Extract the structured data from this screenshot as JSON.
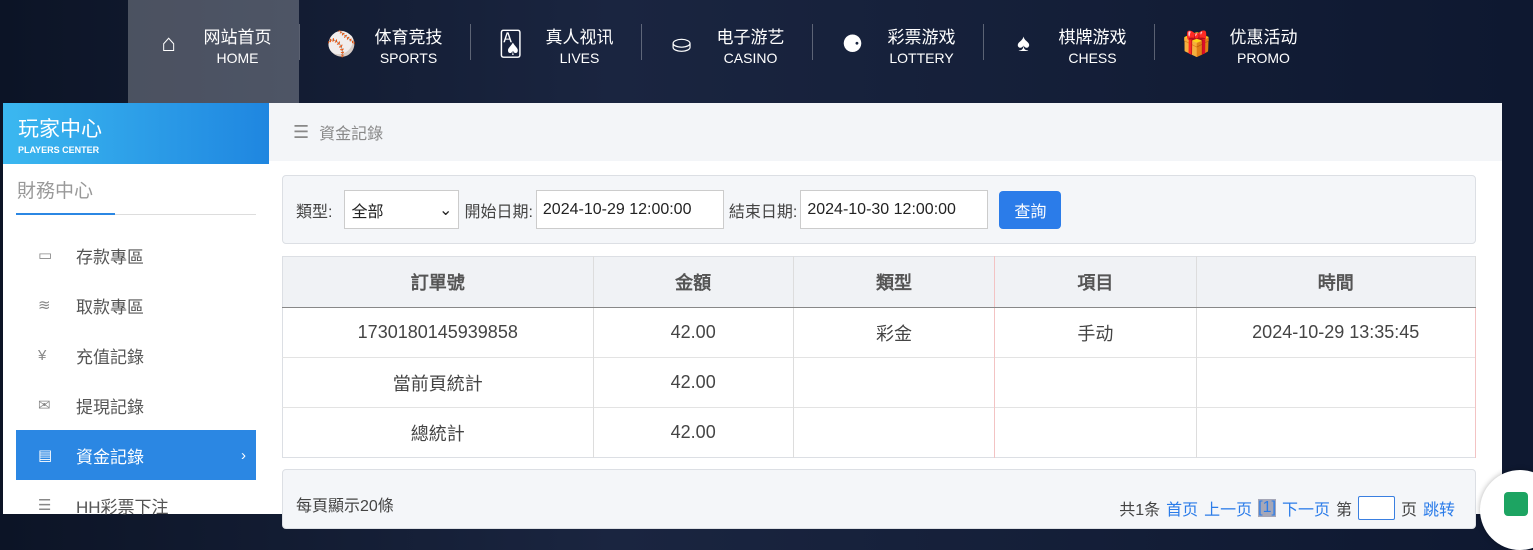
{
  "nav": [
    {
      "zh": "网站首页",
      "en": "HOME",
      "icon": "home-icon",
      "glyph": "⌂"
    },
    {
      "zh": "体育竞技",
      "en": "SPORTS",
      "icon": "ball-icon",
      "glyph": "⚾"
    },
    {
      "zh": "真人视讯",
      "en": "LIVES",
      "icon": "cards-icon",
      "glyph": "🂡"
    },
    {
      "zh": "电子游艺",
      "en": "CASINO",
      "icon": "roulette-icon",
      "glyph": "⛀"
    },
    {
      "zh": "彩票游戏",
      "en": "LOTTERY",
      "icon": "lottery-balls-icon",
      "glyph": "⚈"
    },
    {
      "zh": "棋牌游戏",
      "en": "CHESS",
      "icon": "spade-icon",
      "glyph": "♠"
    },
    {
      "zh": "优惠活动",
      "en": "PROMO",
      "icon": "gift-icon",
      "glyph": "🎁"
    }
  ],
  "sidebar": {
    "title": "玩家中心",
    "subtitle": "PLAYERS CENTER",
    "section": "財務中心",
    "items": [
      {
        "label": "存款專區",
        "glyph": "▭"
      },
      {
        "label": "取款專區",
        "glyph": "≋"
      },
      {
        "label": "充值記錄",
        "glyph": "¥"
      },
      {
        "label": "提現記錄",
        "glyph": "✉"
      },
      {
        "label": "資金記錄",
        "glyph": "▤",
        "chev": "›"
      },
      {
        "label": "HH彩票下注",
        "glyph": "☰"
      }
    ]
  },
  "breadcrumb": {
    "icon": "☰",
    "label": "資金記錄"
  },
  "filter": {
    "type_label": "類型:",
    "type_value": "全部",
    "start_label": "開始日期:",
    "start_value": "2024-10-29 12:00:00",
    "end_label": "結束日期:",
    "end_value": "2024-10-30 12:00:00",
    "query": "查詢"
  },
  "table": {
    "headers": [
      "訂單號",
      "金額",
      "類型",
      "項目",
      "時間"
    ],
    "rows": [
      [
        "1730180145939858",
        "42.00",
        "彩金",
        "手动",
        "2024-10-29 13:35:45"
      ],
      [
        "當前頁統計",
        "42.00",
        "",
        "",
        ""
      ],
      [
        "總統計",
        "42.00",
        "",
        "",
        ""
      ]
    ]
  },
  "footer": {
    "per_page": "每頁顯示20條",
    "total": "共1条",
    "first": "首页",
    "prev": "上一页",
    "current": "[1]",
    "next": "下一页",
    "page_prefix": "第",
    "page_suffix": "页",
    "jump": "跳转"
  }
}
